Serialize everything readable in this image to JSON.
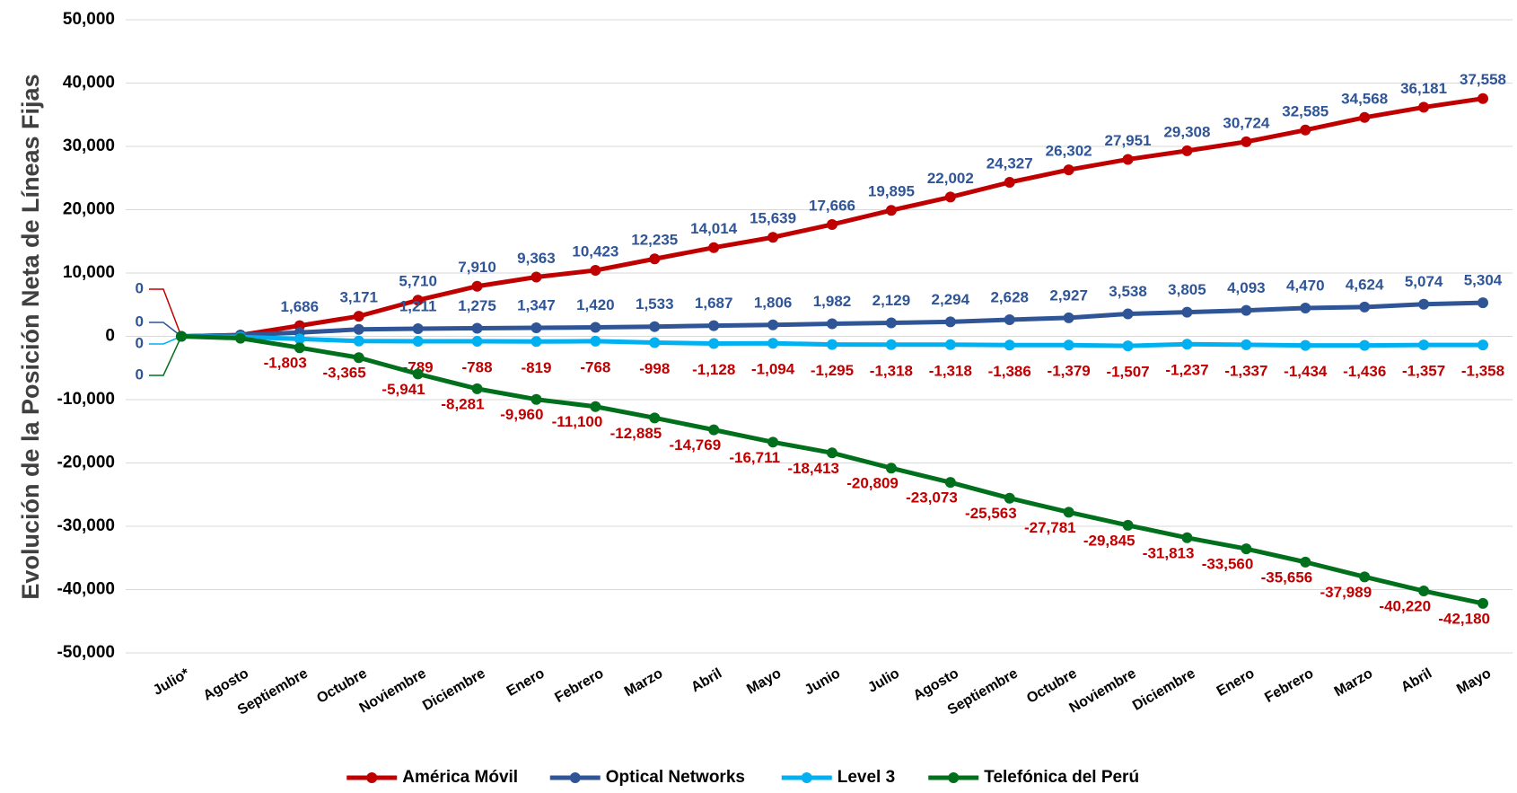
{
  "chart_data": {
    "type": "line",
    "y_label": "Evolución de la Posición Neta de Líneas Fijas",
    "categories": [
      "Julio*",
      "Agosto",
      "Septiembre",
      "Octubre",
      "Noviembre",
      "Diciembre",
      "Enero",
      "Febrero",
      "Marzo",
      "Abril",
      "Mayo",
      "Junio",
      "Julio",
      "Agosto",
      "Septiembre",
      "Octubre",
      "Noviembre",
      "Diciembre",
      "Enero",
      "Febrero",
      "Marzo",
      "Abril",
      "Mayo"
    ],
    "ylim": [
      -50000,
      50000
    ],
    "yticks": [
      {
        "value": -50000,
        "label": "-50,000"
      },
      {
        "value": -40000,
        "label": "-40,000"
      },
      {
        "value": -30000,
        "label": "-30,000"
      },
      {
        "value": -20000,
        "label": "-20,000"
      },
      {
        "value": -10000,
        "label": "-10,000"
      },
      0,
      {
        "value": 10000,
        "label": "10,000"
      },
      {
        "value": 20000,
        "label": "20,000"
      },
      {
        "value": 30000,
        "label": "30,000"
      },
      {
        "value": 40000,
        "label": "40,000"
      },
      {
        "value": 50000,
        "label": "50,000"
      }
    ],
    "grid": true,
    "legend": "bottom",
    "series": [
      {
        "name": "América Móvil",
        "color": "#c00000",
        "label_color": "#2f5597",
        "values": [
          0,
          200,
          1686,
          3171,
          5710,
          7910,
          9363,
          10423,
          12235,
          14014,
          15639,
          17666,
          19895,
          22002,
          24327,
          26302,
          27951,
          29308,
          30724,
          32585,
          34568,
          36181,
          37558
        ],
        "value_labels": [
          "0",
          null,
          "1,686",
          "3,171",
          "5,710",
          "7,910",
          "9,363",
          "10,423",
          "12,235",
          "14,014",
          "15,639",
          "17,666",
          "19,895",
          "22,002",
          "24,327",
          "26,302",
          "27,951",
          "29,308",
          "30,724",
          "32,585",
          "34,568",
          "36,181",
          "37,558"
        ]
      },
      {
        "name": "Optical Networks",
        "color": "#2f5597",
        "label_color": "#2f5597",
        "values": [
          0,
          200,
          600,
          1100,
          1211,
          1275,
          1347,
          1420,
          1533,
          1687,
          1806,
          1982,
          2129,
          2294,
          2628,
          2927,
          3538,
          3805,
          4093,
          4470,
          4624,
          5074,
          5304
        ],
        "value_labels": [
          "0",
          null,
          null,
          null,
          "1,211",
          "1,275",
          "1,347",
          "1,420",
          "1,533",
          "1,687",
          "1,806",
          "1,982",
          "2,129",
          "2,294",
          "2,628",
          "2,927",
          "3,538",
          "3,805",
          "4,093",
          "4,470",
          "4,624",
          "5,074",
          "5,304"
        ]
      },
      {
        "name": "Level 3",
        "color": "#00b0f0",
        "label_color": "#c00000",
        "values": [
          0,
          -100,
          -400,
          -750,
          -789,
          -788,
          -819,
          -768,
          -998,
          -1128,
          -1094,
          -1295,
          -1318,
          -1318,
          -1386,
          -1379,
          -1507,
          -1237,
          -1337,
          -1434,
          -1436,
          -1357,
          -1358
        ],
        "value_labels": [
          "0",
          null,
          null,
          null,
          "-789",
          "-788",
          "-819",
          "-768",
          "-998",
          "-1,128",
          "-1,094",
          "-1,295",
          "-1,318",
          "-1,318",
          "-1,386",
          "-1,379",
          "-1,507",
          "-1,237",
          "-1,337",
          "-1,434",
          "-1,436",
          "-1,357",
          "-1,358"
        ]
      },
      {
        "name": "Telefónica del Perú",
        "color": "#00701c",
        "label_color": "#c00000",
        "values": [
          0,
          -300,
          -1803,
          -3365,
          -5941,
          -8281,
          -9960,
          -11100,
          -12885,
          -14769,
          -16711,
          -18413,
          -20809,
          -23073,
          -25563,
          -27781,
          -29845,
          -31813,
          -33560,
          -35656,
          -37989,
          -40220,
          -42180
        ],
        "value_labels": [
          "0",
          null,
          "-1,803",
          "-3,365",
          "-5,941",
          "-8,281",
          "-9,960",
          "-11,100",
          "-12,885",
          "-14,769",
          "-16,711",
          "-18,413",
          "-20,809",
          "-23,073",
          "-25,563",
          "-27,781",
          "-29,845",
          "-31,813",
          "-33,560",
          "-35,656",
          "-37,989",
          "-40,220",
          "-42,180"
        ]
      }
    ]
  }
}
